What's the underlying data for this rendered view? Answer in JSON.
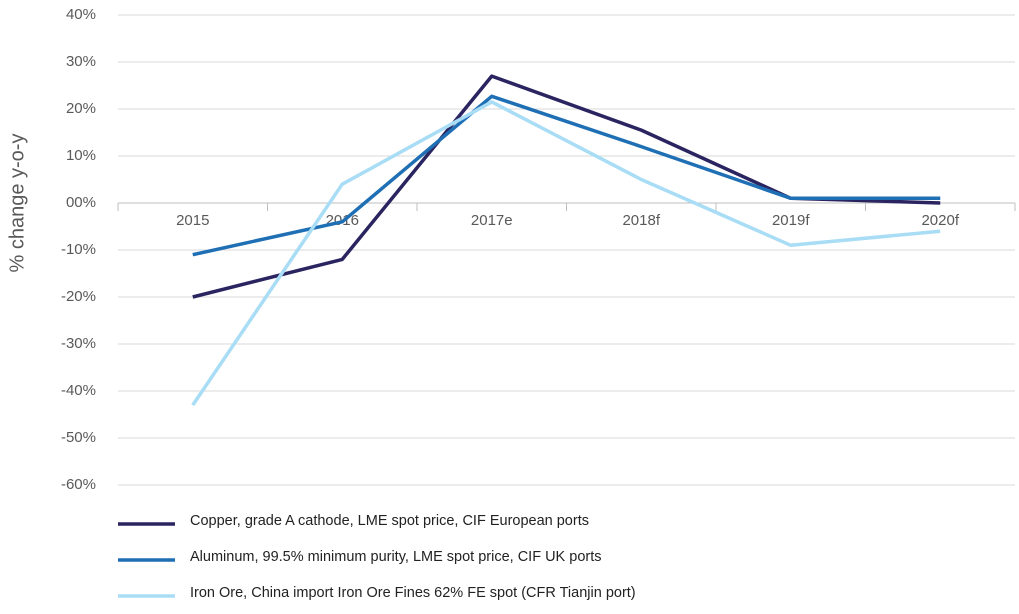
{
  "chart_data": {
    "type": "line",
    "y_label": "% change y-o-y",
    "categories": [
      "2015",
      "2016",
      "2017e",
      "2018f",
      "2019f",
      "2020f"
    ],
    "series": [
      {
        "name": "Copper, grade A cathode, LME spot price, CIF European ports",
        "color": "#2a2460",
        "values": [
          -20,
          -12,
          27,
          15.5,
          1,
          0
        ]
      },
      {
        "name": "Aluminum, 99.5% minimum purity, LME spot price, CIF UK ports",
        "color": "#1f6fb5",
        "values": [
          -11,
          -4,
          22.7,
          12,
          1,
          1
        ]
      },
      {
        "name": "Iron Ore, China import Iron Ore Fines 62% FE spot (CFR Tianjin port)",
        "color": "#a8ddf5",
        "values": [
          -43,
          4,
          21.5,
          5,
          -9,
          -6
        ]
      }
    ],
    "ylim": [
      -60,
      40
    ],
    "yticks": [
      {
        "value": 40,
        "label": "40%"
      },
      {
        "value": 30,
        "label": "30%"
      },
      {
        "value": 20,
        "label": "20%"
      },
      {
        "value": 10,
        "label": "10%"
      },
      {
        "value": 0,
        "label": "00%"
      },
      {
        "value": -10,
        "label": "-10%"
      },
      {
        "value": -20,
        "label": "-20%"
      },
      {
        "value": -30,
        "label": "-30%"
      },
      {
        "value": -40,
        "label": "-40%"
      },
      {
        "value": -50,
        "label": "-50%"
      },
      {
        "value": -60,
        "label": "-60%"
      }
    ],
    "grid": true,
    "legend": "bottom"
  }
}
